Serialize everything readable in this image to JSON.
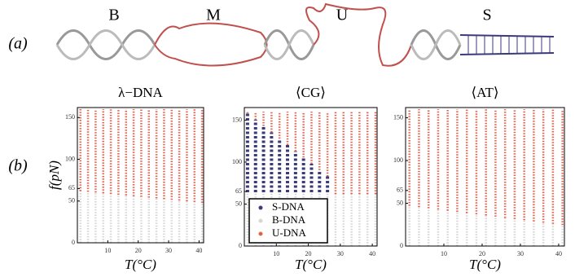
{
  "panel_labels": [
    "(a)",
    "(b)"
  ],
  "diagram": {
    "labels": [
      "B",
      "M",
      "U",
      "S"
    ]
  },
  "chart_data": [
    {
      "type": "bar",
      "stacked": true,
      "title": "λ−DNA",
      "x_label": "T(°C)",
      "y_label": "f(pN)",
      "x": [
        1,
        3.5,
        6,
        8.5,
        11,
        13.5,
        16,
        18.5,
        21,
        23.5,
        26,
        28.5,
        31,
        33.5,
        36,
        38.5,
        41
      ],
      "series": [
        {
          "name": "B-DNA",
          "color": "#d6d6d6",
          "values": [
            62,
            61.1,
            60.3,
            59.4,
            58.5,
            57.6,
            56.8,
            55.9,
            55,
            54.1,
            53.3,
            52.4,
            51.5,
            50.6,
            49.8,
            48.9,
            48
          ]
        },
        {
          "name": "U-DNA",
          "color": "#e8604c",
          "values": [
            98,
            98.9,
            99.7,
            100.6,
            101.5,
            102.4,
            103.2,
            104.1,
            105,
            105.9,
            106.7,
            107.6,
            108.5,
            109.4,
            110.2,
            111.1,
            112
          ]
        }
      ],
      "xlim": [
        0,
        41.5
      ],
      "ylim": [
        0,
        162
      ],
      "xticks": [
        10,
        20,
        30,
        40
      ],
      "yticks": [
        0,
        50,
        65,
        100,
        150
      ]
    },
    {
      "type": "bar",
      "stacked": true,
      "title": "⟨CG⟩",
      "x_label": "T(°C)",
      "legend": "lower left",
      "x": [
        1,
        3.5,
        6,
        8.5,
        11,
        13.5,
        16,
        18.5,
        21,
        23.5,
        26,
        28.5,
        31,
        33.5,
        36,
        38.5,
        41
      ],
      "series": [
        {
          "name": "B-DNA",
          "color": "#d6d6d6",
          "values": [
            64,
            64,
            64,
            64,
            64,
            64,
            64,
            64,
            64,
            64,
            64,
            62,
            62,
            62,
            62,
            62,
            62
          ]
        },
        {
          "name": "S-DNA",
          "color": "#3b3a7a",
          "values": [
            94,
            86.5,
            79,
            71.5,
            64,
            56.5,
            49,
            41.5,
            34,
            26.5,
            19,
            0,
            0,
            0,
            0,
            0,
            0
          ]
        },
        {
          "name": "U-DNA",
          "color": "#e8604c",
          "values": [
            2,
            9.5,
            17,
            24.5,
            32,
            39.5,
            47,
            54.5,
            62,
            69.5,
            77,
            98,
            98,
            98,
            98,
            98,
            98
          ]
        }
      ],
      "legend_order": [
        1,
        0,
        2
      ],
      "xlim": [
        0,
        41.5
      ],
      "ylim": [
        0,
        165
      ],
      "xticks": [
        10,
        20,
        30,
        40
      ],
      "yticks": [
        0,
        50,
        65,
        100,
        150
      ]
    },
    {
      "type": "bar",
      "stacked": true,
      "title": "⟨AT⟩",
      "x_label": "T(°C)",
      "x": [
        1,
        3.5,
        6,
        8.5,
        11,
        13.5,
        16,
        18.5,
        21,
        23.5,
        26,
        28.5,
        31,
        33.5,
        36,
        38.5,
        41
      ],
      "series": [
        {
          "name": "B-DNA",
          "color": "#d6d6d6",
          "values": [
            47,
            45.6,
            44.2,
            42.8,
            41.4,
            40,
            38.6,
            37.2,
            35.8,
            34.4,
            33,
            31.6,
            30.2,
            28.8,
            27.4,
            26,
            24.6
          ]
        },
        {
          "name": "U-DNA",
          "color": "#e8604c",
          "values": [
            113,
            114.4,
            115.8,
            117.2,
            118.6,
            120,
            121.4,
            122.8,
            124.2,
            125.6,
            127,
            128.4,
            129.8,
            131.2,
            132.6,
            134,
            135.4
          ]
        }
      ],
      "xlim": [
        0,
        41.5
      ],
      "ylim": [
        0,
        162
      ],
      "xticks": [
        10,
        20,
        30,
        40
      ],
      "yticks": [
        0,
        50,
        65,
        100,
        150
      ]
    }
  ]
}
